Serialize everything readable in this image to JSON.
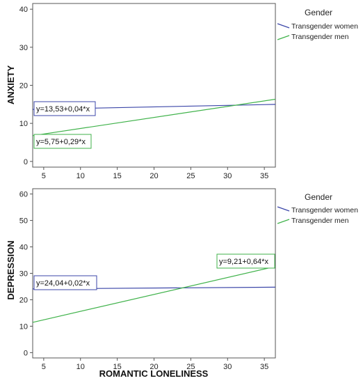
{
  "chart_data": [
    {
      "type": "line",
      "ylabel": "ANXIETY",
      "xlabel": "",
      "xlim": [
        3.5,
        36.5
      ],
      "ylim": [
        -1.5,
        41.5
      ],
      "xticks": [
        "5",
        "10",
        "15",
        "20",
        "25",
        "30",
        "35"
      ],
      "yticks": [
        "0",
        "10",
        "20",
        "30",
        "40"
      ],
      "legend_title": "Gender",
      "legend_position": "right",
      "series": [
        {
          "name": "Transgender women",
          "color": "#3b46a8",
          "intercept": 13.53,
          "slope": 0.04,
          "x": [
            3.5,
            36.5
          ],
          "y": [
            13.67,
            14.99
          ],
          "equation": "y=13,53+0,04*x"
        },
        {
          "name": "Transgender men",
          "color": "#3fb24a",
          "intercept": 5.75,
          "slope": 0.29,
          "x": [
            3.5,
            36.5
          ],
          "y": [
            6.77,
            16.34
          ],
          "equation": "y=5,75+0,29*x"
        }
      ]
    },
    {
      "type": "line",
      "ylabel": "DEPRESSION",
      "xlabel": "ROMANTIC LONELINESS",
      "xlim": [
        3.5,
        36.5
      ],
      "ylim": [
        -2,
        62
      ],
      "xticks": [
        "5",
        "10",
        "15",
        "20",
        "25",
        "30",
        "35"
      ],
      "yticks": [
        "0",
        "10",
        "20",
        "30",
        "40",
        "50",
        "60"
      ],
      "legend_title": "Gender",
      "legend_position": "right",
      "series": [
        {
          "name": "Transgender women",
          "color": "#3b46a8",
          "intercept": 24.04,
          "slope": 0.02,
          "x": [
            3.5,
            36.5
          ],
          "y": [
            24.11,
            24.77
          ],
          "equation": "y=24,04+0,02*x"
        },
        {
          "name": "Transgender men",
          "color": "#3fb24a",
          "intercept": 9.21,
          "slope": 0.64,
          "x": [
            3.5,
            36.5
          ],
          "y": [
            11.45,
            32.57
          ],
          "equation": "y=9,21+0,64*x"
        }
      ]
    }
  ]
}
